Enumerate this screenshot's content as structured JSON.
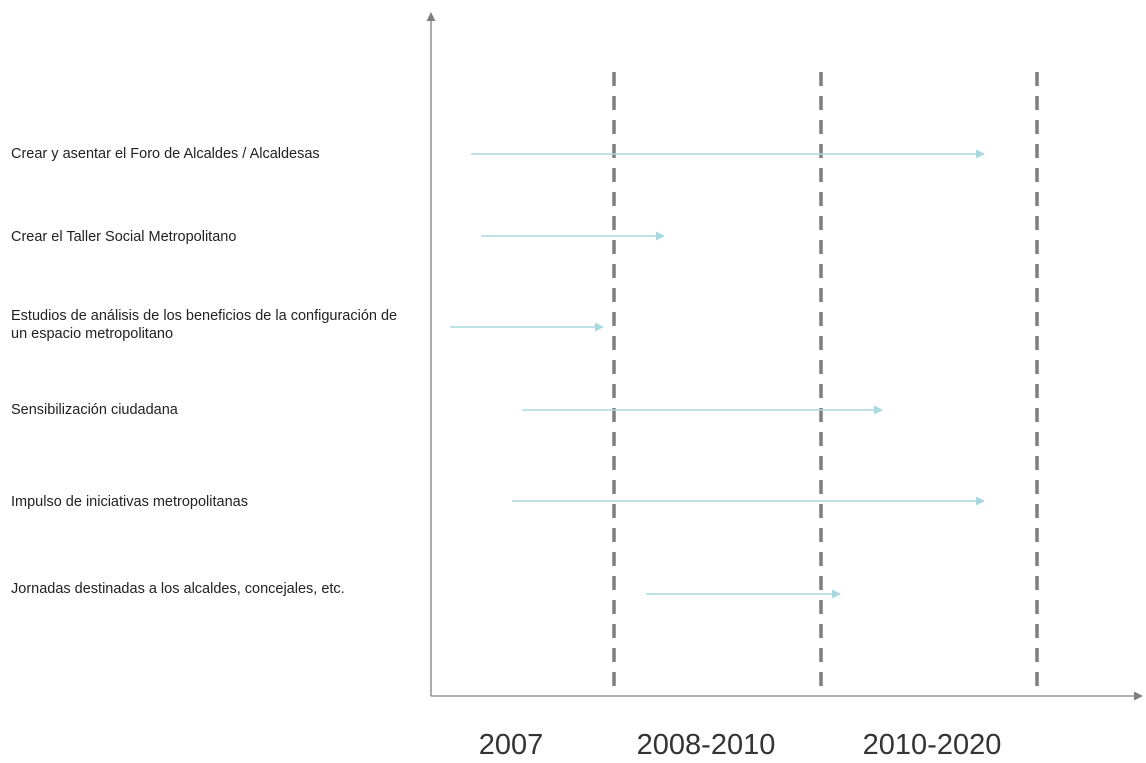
{
  "activities": [
    {
      "label": "Crear y asentar el Foro de Alcaldes / Alcaldesas"
    },
    {
      "label": "Crear el Taller Social Metropolitano"
    },
    {
      "label": "Estudios de análisis de los beneficios de la configuración de un espacio metropolitano"
    },
    {
      "label": "Sensibilización ciudadana"
    },
    {
      "label": "Impulso de iniciativas metropolitanas"
    },
    {
      "label": "Jornadas destinadas a los alcaldes, concejales, etc."
    }
  ],
  "periods": [
    {
      "label": "2007"
    },
    {
      "label": "2008-2010"
    },
    {
      "label": "2010-2020"
    }
  ],
  "colors": {
    "axis": "#7f7f7f",
    "divider": "#7f7f7f",
    "arrow": "#a9d8de",
    "text": "#222222"
  }
}
